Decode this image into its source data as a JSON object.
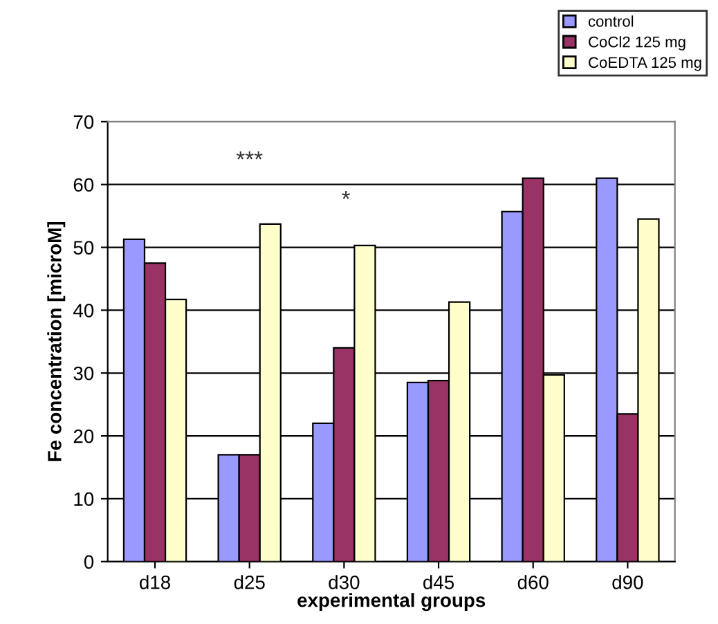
{
  "chart_data": {
    "type": "bar",
    "categories": [
      "d18",
      "d25",
      "d30",
      "d45",
      "d60",
      "d90"
    ],
    "series": [
      {
        "name": "control",
        "color": "#9999ff",
        "values": [
          51.3,
          17,
          22,
          28.5,
          55.7,
          61
        ]
      },
      {
        "name": "CoCl2 125 mg",
        "color": "#993366",
        "values": [
          47.5,
          17,
          34,
          28.8,
          61,
          23.5
        ]
      },
      {
        "name": "CoEDTA 125 mg",
        "color": "#ffffcc",
        "values": [
          41.7,
          53.7,
          50.3,
          41.3,
          29.7,
          54.5
        ]
      }
    ],
    "xlabel": "experimental groups",
    "ylabel": "Fe concentration [microM]",
    "ylim": [
      0,
      70
    ],
    "yticks": [
      0,
      10,
      20,
      30,
      40,
      50,
      60,
      70
    ],
    "annotations": [
      "***",
      "*"
    ],
    "grid": "y",
    "legend": "top right"
  }
}
